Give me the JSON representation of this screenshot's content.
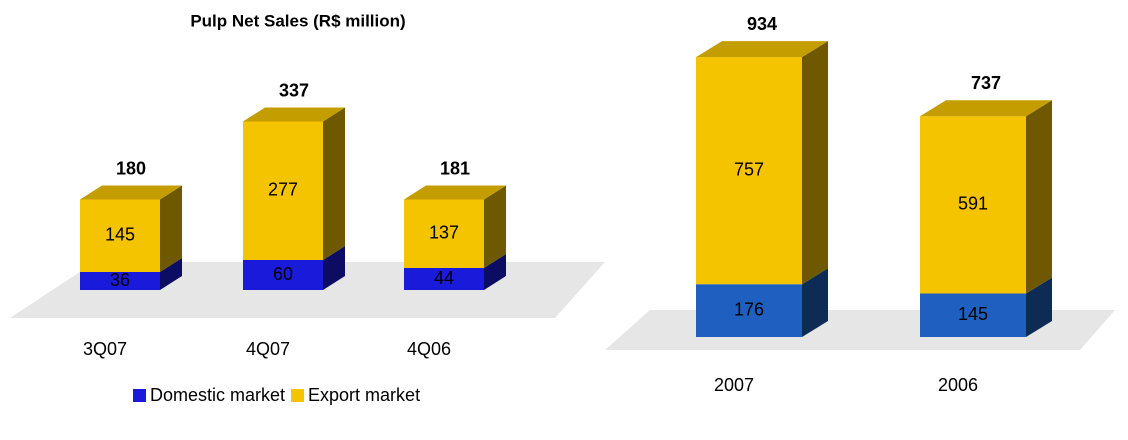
{
  "chart_data": [
    {
      "type": "bar3d_stacked",
      "title": "Pulp Net Sales (R$ million)",
      "categories": [
        "3Q07",
        "4Q07",
        "4Q06"
      ],
      "series": [
        {
          "name": "Domestic market",
          "color": "#1a1adb",
          "values": [
            36,
            60,
            44
          ]
        },
        {
          "name": "Export market",
          "color": "#f5c400",
          "values": [
            145,
            277,
            137
          ]
        }
      ],
      "totals": [
        180,
        337,
        181
      ],
      "legend": "bottom"
    },
    {
      "type": "bar3d_stacked",
      "categories": [
        "2007",
        "2006"
      ],
      "series": [
        {
          "color": "#1f5fbf",
          "values": [
            176,
            145
          ]
        },
        {
          "color": "#f5c400",
          "values": [
            757,
            591
          ]
        }
      ],
      "totals": [
        934,
        737
      ]
    }
  ]
}
